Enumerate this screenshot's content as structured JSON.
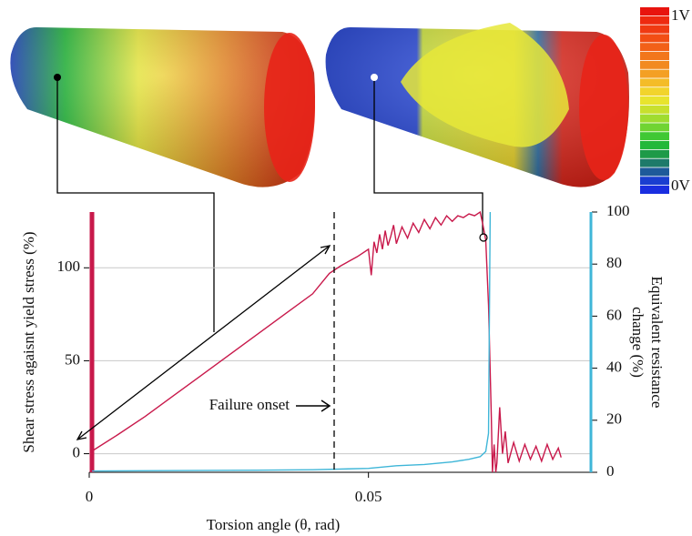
{
  "chart_data": {
    "type": "line",
    "xlabel": "Torsion angle (θ, rad)",
    "ylabel": "Shear stress agaisnt yield stress (%)",
    "y2label": [
      "Equivalent resistance",
      "change (%)"
    ],
    "annotation": "Failure onset",
    "colorbar": {
      "max_label": "1V",
      "min_label": "0V"
    },
    "xlim": [
      0,
      0.09
    ],
    "xticks": [
      0,
      0.05
    ],
    "ylim": [
      -10,
      130
    ],
    "yticks": [
      0,
      50,
      100
    ],
    "y2lim": [
      0,
      100
    ],
    "y2ticks": [
      0,
      20,
      40,
      60,
      80,
      100
    ],
    "grid": true,
    "series": [
      {
        "name": "Shear stress",
        "color": "#c8194b",
        "x": [
          0.0008,
          0.005,
          0.01,
          0.015,
          0.02,
          0.025,
          0.03,
          0.035,
          0.04,
          0.043,
          0.045,
          0.048,
          0.05,
          0.0505,
          0.051,
          0.0515,
          0.052,
          0.0525,
          0.053,
          0.0535,
          0.054,
          0.0545,
          0.055,
          0.056,
          0.057,
          0.058,
          0.059,
          0.06,
          0.061,
          0.062,
          0.063,
          0.064,
          0.065,
          0.066,
          0.067,
          0.068,
          0.069,
          0.07,
          0.0705,
          0.071,
          0.0715,
          0.072,
          0.0722,
          0.0725,
          0.0728,
          0.073,
          0.0735,
          0.074,
          0.0745,
          0.075,
          0.076,
          0.077,
          0.078,
          0.079,
          0.08,
          0.081,
          0.082,
          0.083,
          0.084,
          0.0845
        ],
        "values": [
          2,
          10,
          20,
          31,
          42,
          53,
          64,
          75,
          86,
          97,
          101,
          106,
          110,
          96,
          114,
          108,
          118,
          110,
          120,
          112,
          117,
          123,
          113,
          122,
          116,
          124,
          119,
          126,
          121,
          127,
          123,
          128,
          125,
          128,
          127,
          129,
          128,
          130,
          123,
          115,
          80,
          20,
          -10,
          5,
          -10,
          -5,
          25,
          0,
          12,
          -5,
          6,
          -4,
          5,
          -3,
          4,
          -4,
          5,
          -3,
          3,
          -2
        ]
      },
      {
        "name": "Resistance change",
        "color": "#3fb6d8",
        "axis": "y2",
        "x": [
          0.0005,
          0.03,
          0.04,
          0.05,
          0.055,
          0.06,
          0.065,
          0.068,
          0.07,
          0.071,
          0.0715,
          0.0718
        ],
        "values": [
          0.5,
          0.8,
          1,
          1.5,
          2.5,
          3,
          4,
          5,
          6,
          8,
          15,
          100
        ]
      }
    ]
  }
}
